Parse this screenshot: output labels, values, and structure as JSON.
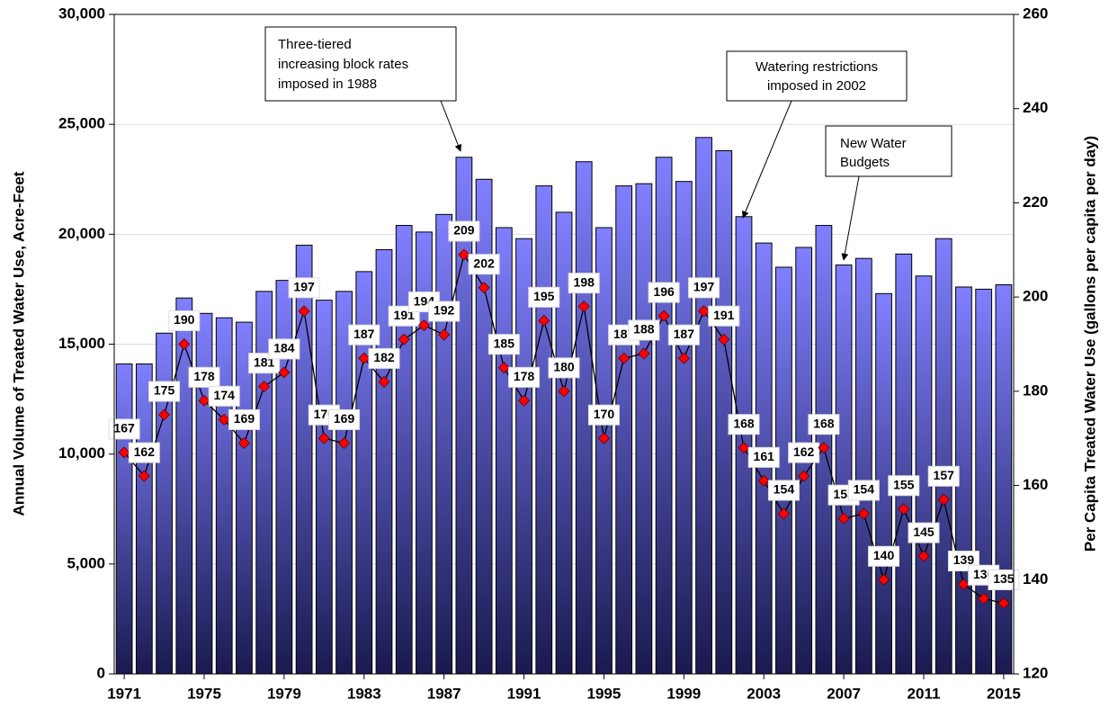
{
  "chart_data": {
    "type": "bar_line",
    "x": [
      1971,
      1972,
      1973,
      1974,
      1975,
      1976,
      1977,
      1978,
      1979,
      1980,
      1981,
      1982,
      1983,
      1984,
      1985,
      1986,
      1987,
      1988,
      1989,
      1990,
      1991,
      1992,
      1993,
      1994,
      1995,
      1996,
      1997,
      1998,
      1999,
      2000,
      2001,
      2002,
      2003,
      2004,
      2005,
      2006,
      2007,
      2008,
      2009,
      2010,
      2011,
      2012,
      2013,
      2014,
      2015
    ],
    "xlim": [
      1970.5,
      2015.5
    ],
    "xticks": [
      1971,
      1975,
      1979,
      1983,
      1987,
      1991,
      1995,
      1999,
      2003,
      2007,
      2011,
      2015
    ],
    "y_label": "Annual Volume of Treated Water Use, Acre-Feet",
    "y2_label": "Per Capita Treated Water Use (gallons per capita per day)",
    "ylim": [
      0,
      30000
    ],
    "yticks": [
      0,
      {
        "value": 5000,
        "label": "5,000"
      },
      {
        "value": 10000,
        "label": "10,000"
      },
      {
        "value": 15000,
        "label": "15,000"
      },
      {
        "value": 20000,
        "label": "20,000"
      },
      {
        "value": 25000,
        "label": "25,000"
      },
      {
        "value": 30000,
        "label": "30,000"
      }
    ],
    "y2lim": [
      120,
      260
    ],
    "y2ticks": [
      120,
      140,
      160,
      180,
      200,
      220,
      240,
      260
    ],
    "grid": true,
    "series": [
      {
        "type": "bar",
        "color": "#8080ff",
        "values": [
          14100,
          14100,
          15500,
          17100,
          16400,
          16200,
          16000,
          17400,
          17900,
          19500,
          17000,
          17400,
          18300,
          19300,
          20400,
          20100,
          20900,
          23500,
          22500,
          20300,
          19800,
          22200,
          21000,
          23300,
          20300,
          22200,
          22300,
          23500,
          22400,
          24400,
          23800,
          20800,
          19600,
          18500,
          19400,
          20400,
          18600,
          18900,
          17300,
          19100,
          18100,
          19800,
          17600,
          17500,
          17700
        ]
      },
      {
        "type": "line",
        "axis": "y2",
        "color": "#000000",
        "marker_color": "#ff0000",
        "values": [
          167,
          162,
          175,
          190,
          178,
          174,
          169,
          181,
          184,
          197,
          170,
          169,
          187,
          182,
          191,
          194,
          192,
          209,
          202,
          185,
          178,
          195,
          180,
          198,
          170,
          187,
          188,
          196,
          187,
          197,
          191,
          168,
          161,
          154,
          162,
          168,
          153,
          154,
          140,
          155,
          145,
          157,
          139,
          136,
          135
        ]
      }
    ],
    "annotations": [
      {
        "lines": [
          "Three-tiered",
          "increasing block rates",
          "imposed in 1988"
        ]
      },
      {
        "lines": [
          "Watering restrictions",
          "imposed in 2002"
        ]
      },
      {
        "lines": [
          "New Water",
          "Budgets"
        ]
      }
    ]
  }
}
